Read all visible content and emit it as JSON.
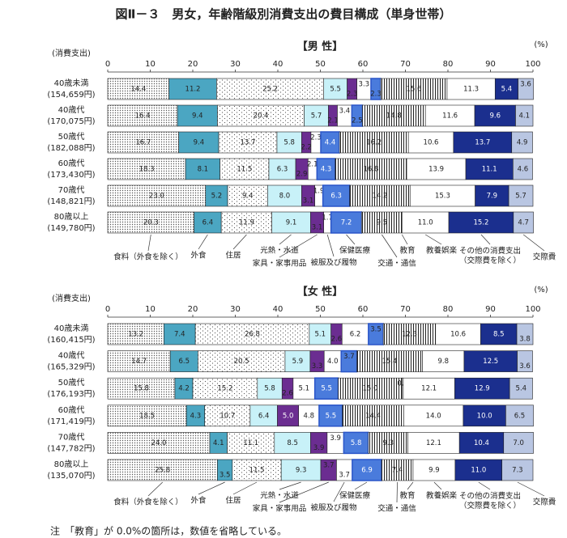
{
  "title": "図Ⅱ－３　男女，年齢階級別消費支出の費目構成（単身世帯）",
  "note": "注　「教育」が 0.0%の箇所は，数値を省略している。",
  "chart_data": [
    {
      "type": "bar",
      "orientation": "horizontal",
      "stacked": true,
      "subtitle": "【男 性】",
      "unit_label": "(%)",
      "category_axis_label": "(消費支出)",
      "categories": [
        "40歳未満",
        "40歳代",
        "50歳代",
        "60歳代",
        "70歳代",
        "80歳以上"
      ],
      "category_subtitles": [
        "(154,659円)",
        "(170,075円)",
        "(182,088円)",
        "(173,430円)",
        "(148,821円)",
        "(149,780円)"
      ],
      "xlim": [
        0,
        100
      ],
      "xticks": [
        0,
        10,
        20,
        30,
        40,
        50,
        60,
        70,
        80,
        90,
        100
      ],
      "series": [
        {
          "name": "食料（外食を除く）",
          "color": "#e4e4e4",
          "pattern": "dense-dots",
          "values": [
            14.4,
            16.4,
            16.7,
            18.3,
            23.0,
            20.3
          ],
          "value_labels": [
            "14.4",
            "16.4",
            "16.7",
            "18.3",
            "23.0",
            "20.3"
          ]
        },
        {
          "name": "外食",
          "color": "#4ba6c2",
          "values": [
            11.2,
            9.4,
            9.4,
            8.1,
            5.2,
            6.4
          ],
          "value_labels": [
            "11.2",
            "9.4",
            "9.4",
            "8.1",
            "5.2",
            "6.4"
          ]
        },
        {
          "name": "住居",
          "color": "#ffffff",
          "pattern": "sparse-dots",
          "values": [
            25.2,
            20.4,
            13.7,
            11.5,
            9.4,
            11.9
          ],
          "value_labels": [
            "25.2",
            "20.4",
            "13.7",
            "11.5",
            "9.4",
            "11.9"
          ]
        },
        {
          "name": "光熱・水道",
          "color": "#c8f1f8",
          "values": [
            5.5,
            5.7,
            5.8,
            6.3,
            8.0,
            9.1
          ],
          "value_labels": [
            "5.5",
            "5.7",
            "5.8",
            "6.3",
            "8.0",
            "9.1"
          ]
        },
        {
          "name": "家具・家事用品",
          "color": "#6b2d91",
          "values": [
            2.3,
            2.1,
            2.2,
            2.9,
            3.1,
            3.1
          ],
          "value_labels": [
            "2.3",
            "2.1",
            "2.2",
            "2.9",
            "3.1",
            "3.1"
          ]
        },
        {
          "name": "被服及び履物",
          "color": "#ffffff",
          "values": [
            3.3,
            3.4,
            2.3,
            2.1,
            1.9,
            1.7
          ],
          "value_labels": [
            "3.3",
            "3.4",
            "2.3",
            "2.1",
            "1.9",
            "1.7"
          ]
        },
        {
          "name": "保健医療",
          "color": "#4a7bdc",
          "values": [
            2.3,
            2.5,
            4.4,
            4.3,
            6.3,
            7.2
          ],
          "value_labels": [
            "2.3",
            "2.5",
            "4.4",
            "4.3",
            "6.3",
            "7.2"
          ]
        },
        {
          "name": "交通・通信",
          "color": "#ffffff",
          "pattern": "vertical-stripes",
          "values": [
            15.6,
            14.8,
            16.2,
            16.8,
            14.2,
            9.5
          ],
          "value_labels": [
            "15.6",
            "14.8",
            "16.2",
            "16.8",
            "14.2",
            "9.5"
          ]
        },
        {
          "name": "教育",
          "color": "#ffffff",
          "values": [
            0,
            0,
            0,
            0,
            0,
            0
          ],
          "value_labels": [
            null,
            null,
            null,
            null,
            null,
            null
          ]
        },
        {
          "name": "教養娯楽",
          "color": "#ffffff",
          "values": [
            11.3,
            11.6,
            10.6,
            13.9,
            15.3,
            11.0
          ],
          "value_labels": [
            "11.3",
            "11.6",
            "10.6",
            "13.9",
            "15.3",
            "11.0"
          ]
        },
        {
          "name": "その他の消費支出（交際費を除く）",
          "color": "#1b2f8e",
          "values": [
            5.4,
            9.6,
            13.7,
            11.1,
            7.9,
            15.2
          ],
          "value_labels": [
            "5.4",
            "9.6",
            "13.7",
            "11.1",
            "7.9",
            "15.2"
          ]
        },
        {
          "name": "交際費",
          "color": "#b9c6e2",
          "values": [
            3.6,
            4.1,
            4.9,
            4.6,
            5.7,
            4.7
          ],
          "value_labels": [
            "3.6",
            "4.1",
            "4.9",
            "4.6",
            "5.7",
            "4.7"
          ]
        }
      ]
    },
    {
      "type": "bar",
      "orientation": "horizontal",
      "stacked": true,
      "subtitle": "【女 性】",
      "unit_label": "(%)",
      "category_axis_label": "(消費支出)",
      "categories": [
        "40歳未満",
        "40歳代",
        "50歳代",
        "60歳代",
        "70歳代",
        "80歳以上"
      ],
      "category_subtitles": [
        "(160,415円)",
        "(165,329円)",
        "(176,193円)",
        "(171,419円)",
        "(147,782円)",
        "(135,070円)"
      ],
      "xlim": [
        0,
        100
      ],
      "xticks": [
        0,
        10,
        20,
        30,
        40,
        50,
        60,
        70,
        80,
        90,
        100
      ],
      "series": [
        {
          "name": "食料（外食を除く）",
          "color": "#e4e4e4",
          "pattern": "dense-dots",
          "values": [
            13.2,
            14.7,
            15.8,
            18.5,
            24.0,
            25.8
          ],
          "value_labels": [
            "13.2",
            "14.7",
            "15.8",
            "18.5",
            "24.0",
            "25.8"
          ]
        },
        {
          "name": "外食",
          "color": "#4ba6c2",
          "values": [
            7.4,
            6.5,
            4.2,
            4.3,
            4.1,
            3.5
          ],
          "value_labels": [
            "7.4",
            "6.5",
            "4.2",
            "4.3",
            "4.1",
            "3.5"
          ]
        },
        {
          "name": "住居",
          "color": "#ffffff",
          "pattern": "sparse-dots",
          "values": [
            26.8,
            20.5,
            15.2,
            10.7,
            11.1,
            11.5
          ],
          "value_labels": [
            "26.8",
            "20.5",
            "15.2",
            "10.7",
            "11.1",
            "11.5"
          ]
        },
        {
          "name": "光熱・水道",
          "color": "#c8f1f8",
          "values": [
            5.1,
            5.9,
            5.8,
            6.4,
            8.5,
            9.3
          ],
          "value_labels": [
            "5.1",
            "5.9",
            "5.8",
            "6.4",
            "8.5",
            "9.3"
          ]
        },
        {
          "name": "家具・家事用品",
          "color": "#6b2d91",
          "values": [
            2.6,
            3.3,
            2.6,
            5.0,
            3.9,
            3.7
          ],
          "value_labels": [
            "2.6",
            "3.3",
            "2.6",
            "5.0",
            "3.9",
            "3.7"
          ]
        },
        {
          "name": "被服及び履物",
          "color": "#ffffff",
          "values": [
            6.2,
            4.0,
            5.1,
            4.8,
            3.9,
            3.7
          ],
          "value_labels": [
            "6.2",
            "4.0",
            "5.1",
            "4.8",
            "3.9",
            "3.7"
          ]
        },
        {
          "name": "保健医療",
          "color": "#4a7bdc",
          "values": [
            3.5,
            3.7,
            5.5,
            5.5,
            5.8,
            6.9
          ],
          "value_labels": [
            "3.5",
            "3.7",
            "5.5",
            "5.5",
            "5.8",
            "6.9"
          ]
        },
        {
          "name": "交通・通信",
          "color": "#ffffff",
          "pattern": "vertical-stripes",
          "values": [
            12.3,
            15.4,
            15.0,
            14.4,
            9.3,
            7.4
          ],
          "value_labels": [
            "12.3",
            "15.4",
            "15.0",
            "14.4",
            "9.3",
            "7.4"
          ]
        },
        {
          "name": "教育",
          "color": "#ffffff",
          "values": [
            0,
            0,
            0.3,
            0,
            0,
            0
          ],
          "value_labels": [
            null,
            null,
            "0.3",
            null,
            null,
            null
          ]
        },
        {
          "name": "教養娯楽",
          "color": "#ffffff",
          "values": [
            10.6,
            9.8,
            12.1,
            14.0,
            12.1,
            9.9
          ],
          "value_labels": [
            "10.6",
            "9.8",
            "12.1",
            "14.0",
            "12.1",
            "9.9"
          ]
        },
        {
          "name": "その他の消費支出（交際費を除く）",
          "color": "#1b2f8e",
          "values": [
            8.5,
            12.5,
            12.9,
            10.0,
            10.4,
            11.0
          ],
          "value_labels": [
            "8.5",
            "12.5",
            "12.9",
            "10.0",
            "10.4",
            "11.0"
          ]
        },
        {
          "name": "交際費",
          "color": "#b9c6e2",
          "values": [
            3.8,
            3.6,
            5.4,
            6.5,
            7.0,
            7.3
          ],
          "value_labels": [
            "3.8",
            "3.6",
            "5.4",
            "6.5",
            "7.0",
            "7.3"
          ]
        }
      ]
    }
  ]
}
